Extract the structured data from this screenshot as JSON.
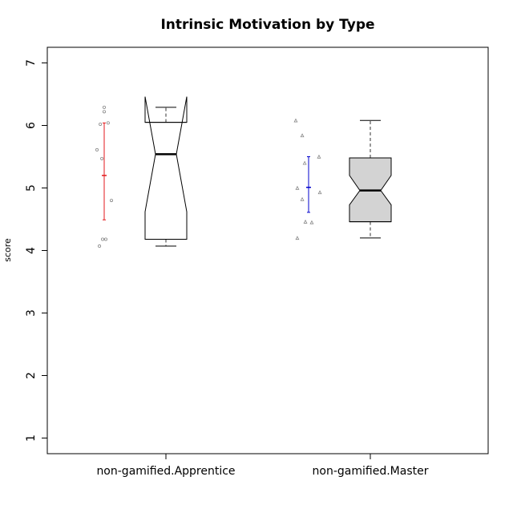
{
  "chart_data": {
    "type": "boxplot",
    "title": "Intrinsic Motivation by Type",
    "xlabel": "",
    "ylabel": "score",
    "ylim": [
      0.75,
      7.25
    ],
    "yticks": [
      1,
      2,
      3,
      4,
      5,
      6,
      7
    ],
    "grid": false,
    "categories": [
      "non-gamified.Apprentice",
      "non-gamified.Master"
    ],
    "boxes": [
      {
        "category": "non-gamified.Apprentice",
        "fill": "#ffffff",
        "whisker_low": 4.07,
        "q1": 4.18,
        "median": 5.54,
        "q3": 6.05,
        "whisker_high": 6.29,
        "notch_low": 4.62,
        "notch_high": 6.46
      },
      {
        "category": "non-gamified.Master",
        "fill": "#d3d3d3",
        "whisker_low": 4.2,
        "q1": 4.46,
        "median": 4.96,
        "q3": 5.48,
        "whisker_high": 6.08,
        "notch_low": 4.73,
        "notch_high": 5.2
      }
    ],
    "mean_ci": [
      {
        "category": "non-gamified.Apprentice",
        "mean": 5.2,
        "low": 4.49,
        "high": 6.04,
        "color": "#e31a1c"
      },
      {
        "category": "non-gamified.Master",
        "mean": 5.01,
        "low": 4.61,
        "high": 5.5,
        "color": "#0000cc"
      }
    ],
    "points": [
      {
        "category": "non-gamified.Apprentice",
        "values": [
          4.07,
          4.18,
          4.18,
          4.8,
          5.47,
          5.61,
          6.02,
          6.04,
          6.22,
          6.29
        ],
        "offsets": [
          -0.33,
          -0.11,
          0.11,
          0.5,
          -0.16,
          -0.5,
          -0.27,
          0.27,
          0.0,
          0.0
        ]
      },
      {
        "category": "non-gamified.Master",
        "values": [
          4.2,
          4.45,
          4.46,
          4.82,
          4.93,
          5.0,
          5.4,
          5.5,
          5.84,
          6.08
        ],
        "offsets": [
          -0.78,
          0.22,
          -0.22,
          -0.44,
          0.78,
          -0.78,
          -0.27,
          0.72,
          -0.44,
          -0.89
        ]
      }
    ]
  }
}
